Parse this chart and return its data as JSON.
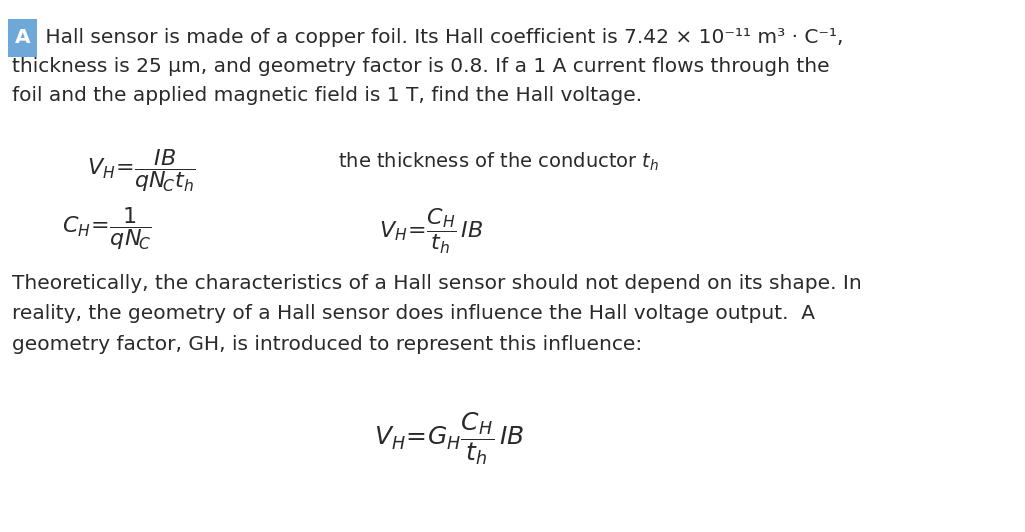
{
  "bg_color": "#ffffff",
  "text_color": "#2a2a2a",
  "highlight_color": "#6ea8d8",
  "line1": " Hall sensor is made of a copper foil. Its Hall coefficient is 7.42 × 10⁻¹¹ m³ · C⁻¹,",
  "line2": "thickness is 25 μm, and geometry factor is 0.8. If a 1 A current flows through the",
  "line3": "foil and the applied magnetic field is 1 T, find the Hall voltage.",
  "body1": "Theoretically, the characteristics of a Hall sensor should not depend on its shape. In",
  "body2": "reality, the geometry of a Hall sensor does influence the Hall voltage output.  A",
  "body3": "geometry factor, GH, is introduced to represent this influence:",
  "font_size_body": 14.5,
  "font_size_eq": 15
}
